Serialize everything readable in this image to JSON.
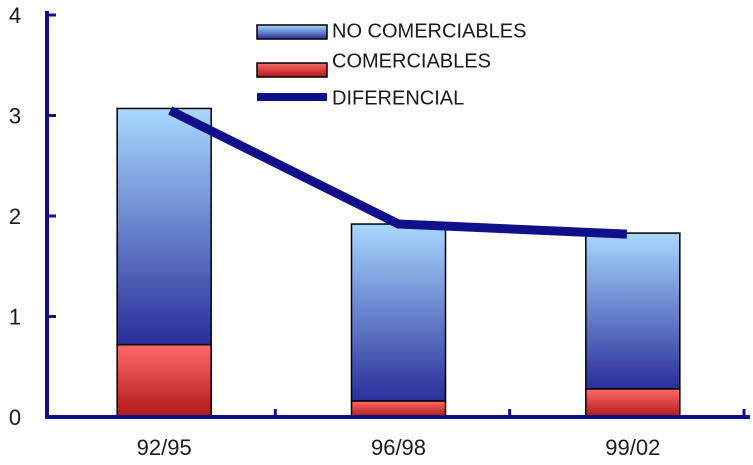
{
  "chart_data": {
    "type": "bar",
    "stacked": true,
    "categories": [
      "92/95",
      "96/98",
      "99/02"
    ],
    "series": [
      {
        "name": "COMERCIABLES",
        "type": "bar",
        "values": [
          0.72,
          0.16,
          0.28
        ]
      },
      {
        "name": "NO COMERCIABLES",
        "type": "bar",
        "values": [
          2.35,
          1.76,
          1.55
        ]
      },
      {
        "name": "DIFERENCIAL",
        "type": "line",
        "values": [
          3.05,
          1.92,
          1.82
        ]
      }
    ],
    "ylim": [
      0,
      4
    ],
    "yticks": [
      "0",
      "1",
      "2",
      "3",
      "4"
    ],
    "grid": false,
    "legend_position": "top-center",
    "colors": {
      "no_comerciables_top": "#a8d8ff",
      "no_comerciables_bottom": "#2a2f9a",
      "comerciables_top": "#ff6a6a",
      "comerciables_bottom": "#b01818",
      "diferencial": "#10108a",
      "axis": "#10108a"
    }
  }
}
